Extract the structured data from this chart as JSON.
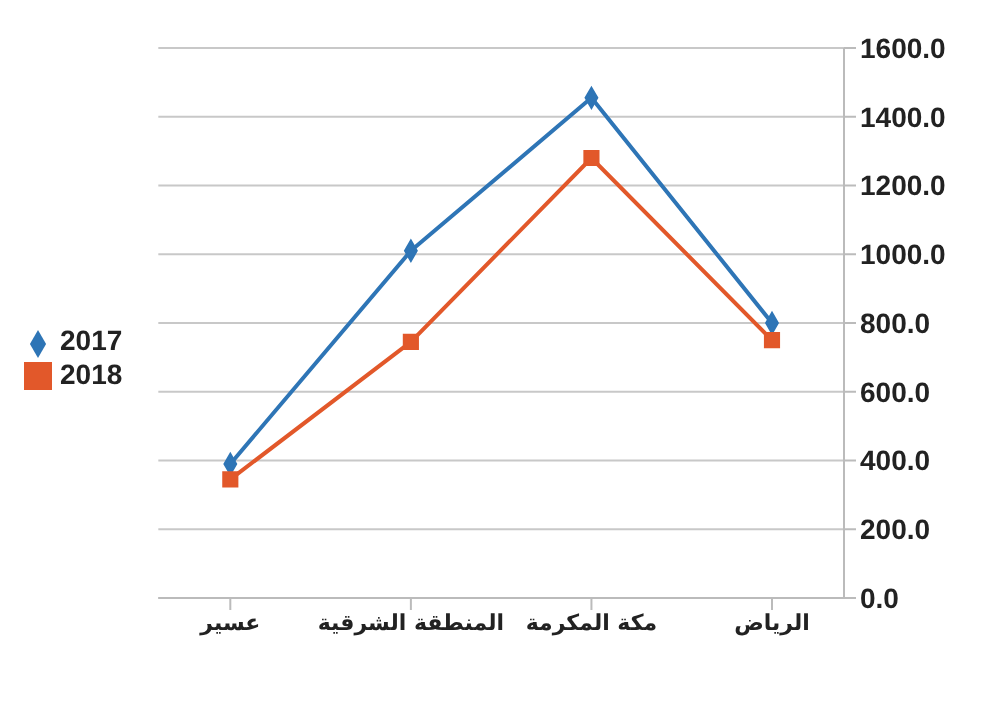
{
  "chart_data": {
    "type": "line",
    "categories": [
      "عسير",
      "المنطقة الشرقية",
      "مكة المكرمة",
      "الرياض"
    ],
    "series": [
      {
        "name": "2017",
        "color": "#2e75b6",
        "marker": "diamond",
        "values": [
          390,
          1010,
          1455,
          800
        ]
      },
      {
        "name": "2018",
        "color": "#e2582a",
        "marker": "square",
        "values": [
          345,
          745,
          1280,
          750
        ]
      }
    ],
    "ylim": [
      0,
      1600
    ],
    "yticks": [
      {
        "value": 0,
        "label": "0.0"
      },
      {
        "value": 200,
        "label": "200.0"
      },
      {
        "value": 400,
        "label": "400.0"
      },
      {
        "value": 600,
        "label": "600.0"
      },
      {
        "value": 800,
        "label": "800.0"
      },
      {
        "value": 1000,
        "label": "1000.0"
      },
      {
        "value": 1200,
        "label": "1200.0"
      },
      {
        "value": 1400,
        "label": "1400.0"
      },
      {
        "value": 1600,
        "label": "1600.0"
      }
    ],
    "grid": "y",
    "legend": "left",
    "line_style": "solid"
  }
}
